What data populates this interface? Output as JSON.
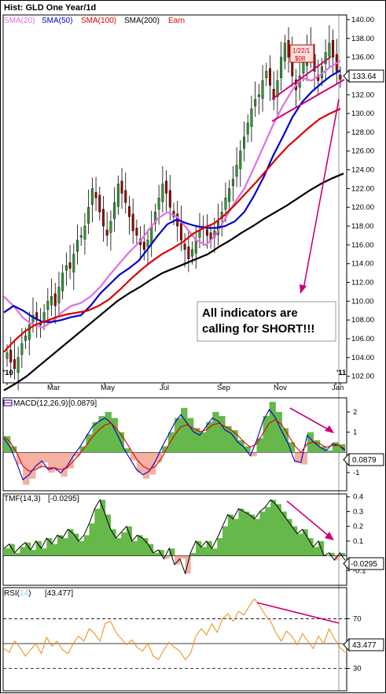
{
  "header": {
    "title": "Hist: GLD One Year/1d"
  },
  "legend": [
    {
      "label": "SMA(20)",
      "color": "#e070e0"
    },
    {
      "label": "SMA(50)",
      "color": "#0000cc"
    },
    {
      "label": "SMA(100)",
      "color": "#dd0000"
    },
    {
      "label": "SMA(200)",
      "color": "#000000"
    },
    {
      "label": "Earn",
      "color": "#dd0000"
    }
  ],
  "annotation": {
    "line1": "All indicators are",
    "line2": "calling for SHORT!!!"
  },
  "price_tags": {
    "last": "133.64",
    "macd": "0.0879",
    "tmf": "-0.0295",
    "rsi": "43.477"
  },
  "panel_labels": {
    "macd": "MACD(12,26,9)",
    "macd_value": "[0.0879]",
    "tmf": "TMF(14,3)",
    "tmf_value": "[-0.0295]",
    "rsi": "RSI(",
    "rsi_period": "14",
    "rsi_close": ")",
    "rsi_value": "[43.477]"
  },
  "box_tag": {
    "line1": "1/22/1",
    "line2": "$08"
  },
  "colors": {
    "up": "#2e9a2e",
    "down": "#a00000",
    "sma20": "#e070e0",
    "sma50": "#0000cc",
    "sma100": "#dd0000",
    "sma200": "#000000",
    "rsi": "#e69a1a",
    "arrow": "#cc0077",
    "macd_pos": "#66b84a",
    "macd_neg": "#f4b0a0"
  },
  "chart_data": [
    {
      "type": "candlestick",
      "title": "Hist: GLD One Year/1d",
      "x_ticks": [
        "'10",
        "Mar",
        "May",
        "Jul",
        "Sep",
        "Nov",
        "Jan",
        "'11"
      ],
      "y_ticks": [
        102,
        104,
        106,
        108,
        110,
        112,
        114,
        116,
        118,
        120,
        122,
        124,
        126,
        128,
        130,
        132,
        134,
        136,
        138,
        140
      ],
      "ylim": [
        101.3,
        140.5
      ],
      "last_value": 133.64,
      "series": [
        {
          "name": "SMA(20)",
          "values": [
            110.5,
            109.5,
            108.2,
            107.5,
            107.2,
            107.8,
            108.8,
            109.5,
            109.8,
            110.5,
            111.5,
            112.8,
            114.0,
            115.2,
            116.2,
            117.5,
            118.8,
            119.5,
            119.0,
            117.8,
            116.5,
            116.0,
            117.0,
            118.8,
            120.5,
            122.0,
            124.2,
            126.5,
            128.8,
            130.8,
            132.5,
            133.8,
            133.5,
            134.2,
            135.0,
            135.6
          ]
        },
        {
          "name": "SMA(50)",
          "values": [
            108.8,
            109.5,
            109.0,
            108.3,
            107.8,
            107.8,
            108.0,
            108.3,
            108.5,
            109.5,
            110.8,
            111.8,
            112.8,
            113.5,
            114.3,
            115.6,
            117.0,
            118.2,
            118.7,
            118.3,
            118.0,
            117.8,
            117.8,
            118.0,
            118.5,
            119.5,
            121.2,
            123.2,
            125.5,
            127.5,
            129.6,
            131.2,
            132.3,
            133.2,
            134.0,
            134.6
          ]
        },
        {
          "name": "SMA(100)",
          "values": [
            104.6,
            105.8,
            106.8,
            107.5,
            107.9,
            108.3,
            108.6,
            108.8,
            109.0,
            109.5,
            110.2,
            111.2,
            112.3,
            113.3,
            114.2,
            115.0,
            115.6,
            116.3,
            117.2,
            117.8,
            118.3,
            119.2,
            120.3,
            121.5,
            122.7,
            124.0,
            125.3,
            126.5,
            127.5,
            128.5,
            129.4,
            130.0,
            130.5
          ]
        },
        {
          "name": "SMA(200)",
          "values": [
            100.5,
            101.2,
            102.0,
            103.0,
            104.0,
            105.0,
            106.0,
            107.0,
            108.0,
            109.0,
            110.0,
            110.8,
            111.5,
            112.3,
            113.0,
            113.5,
            114.0,
            114.5,
            115.0,
            115.8,
            116.5,
            117.3,
            118.0,
            118.8,
            119.5,
            120.2,
            121.0,
            121.8,
            122.5,
            123.1,
            123.6
          ]
        }
      ],
      "candles_close": [
        104.5,
        103.5,
        102.8,
        104.0,
        105.5,
        106.3,
        107.5,
        108.5,
        108.0,
        107.5,
        108.8,
        110.0,
        110.5,
        109.5,
        111.5,
        113.0,
        113.8,
        113.5,
        115.0,
        116.5,
        117.0,
        118.0,
        120.0,
        122.0,
        121.0,
        119.5,
        118.0,
        117.0,
        118.5,
        120.5,
        122.5,
        121.5,
        120.5,
        119.0,
        117.5,
        117.0,
        116.0,
        115.5,
        116.5,
        118.0,
        119.5,
        121.0,
        122.5,
        121.5,
        120.0,
        119.0,
        118.0,
        116.5,
        115.5,
        114.5,
        115.5,
        116.5,
        117.5,
        118.0,
        117.0,
        116.5,
        117.5,
        118.5,
        119.5,
        121.0,
        122.0,
        123.0,
        124.5,
        126.0,
        127.5,
        129.0,
        130.5,
        131.5,
        132.0,
        133.5,
        134.5,
        133.0,
        131.5,
        133.5,
        136.0,
        137.5,
        136.0,
        134.0,
        132.5,
        134.0,
        135.5,
        137.0,
        136.0,
        134.5,
        133.5,
        135.0,
        136.5,
        137.5,
        136.0,
        134.5,
        133.64
      ]
    },
    {
      "type": "area",
      "name": "MACD(12,26,9)",
      "last_value": 0.0879,
      "y_ticks": [
        -1,
        1,
        2
      ],
      "ylim": [
        -1.9,
        2.7
      ],
      "series": [
        {
          "name": "MACD",
          "values": [
            0.8,
            0.3,
            -0.6,
            -1.6,
            -1.3,
            -0.8,
            -0.5,
            -1.0,
            -0.9,
            -1.2,
            -0.8,
            -0.2,
            0.3,
            0.9,
            1.5,
            1.8,
            2.0,
            1.7,
            1.0,
            0.2,
            -0.4,
            -1.0,
            -1.3,
            -1.1,
            -0.5,
            0.3,
            1.0,
            1.7,
            2.2,
            1.7,
            1.2,
            1.0,
            1.5,
            2.0,
            1.8,
            1.3,
            1.1,
            0.6,
            0.3,
            -0.2,
            0.7,
            1.8,
            2.5,
            2.0,
            1.2,
            0.5,
            -0.5,
            -0.6,
            1.0,
            0.6,
            0.3,
            0.1,
            0.5,
            0.4,
            0.1
          ]
        },
        {
          "name": "Signal",
          "values": [
            0.9,
            0.6,
            0.0,
            -0.8,
            -1.1,
            -1.0,
            -0.8,
            -0.9,
            -0.9,
            -1.0,
            -0.9,
            -0.5,
            -0.1,
            0.4,
            0.9,
            1.3,
            1.6,
            1.7,
            1.3,
            0.8,
            0.2,
            -0.4,
            -0.8,
            -1.0,
            -0.8,
            -0.3,
            0.4,
            1.0,
            1.5,
            1.6,
            1.4,
            1.2,
            1.3,
            1.6,
            1.7,
            1.5,
            1.3,
            1.0,
            0.6,
            0.3,
            0.5,
            1.1,
            1.7,
            1.9,
            1.6,
            1.0,
            0.4,
            0.0,
            0.5,
            0.6,
            0.5,
            0.3,
            0.4,
            0.4,
            0.2
          ]
        }
      ]
    },
    {
      "type": "area",
      "name": "TMF(14,3)",
      "last_value": -0.0295,
      "y_ticks": [
        -0.1,
        0.1,
        0.2,
        0.3,
        0.4
      ],
      "ylim": [
        -0.2,
        0.42
      ],
      "values": [
        0.05,
        0.08,
        0.02,
        0.06,
        0.09,
        0.04,
        0.1,
        0.05,
        0.12,
        0.08,
        0.14,
        0.12,
        0.18,
        0.15,
        0.1,
        0.14,
        0.22,
        0.32,
        0.38,
        0.28,
        0.18,
        0.12,
        0.16,
        0.2,
        0.1,
        0.14,
        0.12,
        0.08,
        0.02,
        0.04,
        -0.02,
        0.05,
        -0.06,
        -0.02,
        -0.12,
        0.02,
        0.1,
        0.06,
        0.1,
        0.05,
        0.12,
        0.2,
        0.28,
        0.25,
        0.32,
        0.3,
        0.28,
        0.25,
        0.3,
        0.33,
        0.38,
        0.35,
        0.3,
        0.25,
        0.2,
        0.15,
        0.18,
        0.12,
        0.06,
        0.1,
        0.0,
        0.02,
        -0.03,
        0.02,
        -0.03
      ]
    },
    {
      "type": "line",
      "name": "RSI(14)",
      "last_value": 43.477,
      "y_ticks": [
        30,
        50,
        70
      ],
      "ylim": [
        12,
        95
      ],
      "values": [
        46,
        43,
        52,
        47,
        40,
        45,
        50,
        42,
        55,
        48,
        52,
        45,
        42,
        50,
        56,
        52,
        62,
        58,
        52,
        66,
        68,
        59,
        54,
        49,
        53,
        47,
        44,
        50,
        40,
        37,
        45,
        51,
        47,
        44,
        37,
        42,
        56,
        62,
        57,
        66,
        59,
        70,
        74,
        68,
        76,
        73,
        80,
        86,
        80,
        73,
        68,
        59,
        52,
        60,
        56,
        49,
        58,
        52,
        46,
        56,
        50,
        62,
        54,
        47,
        43
      ]
    }
  ]
}
